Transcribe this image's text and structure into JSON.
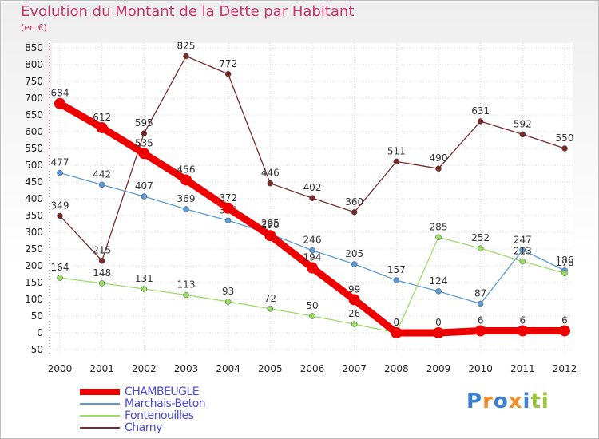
{
  "header": {
    "title": "Evolution du Montant de la Dette par Habitant",
    "unit": "(en €)"
  },
  "brand": {
    "text": "Proxiti"
  },
  "chart_data": {
    "type": "line",
    "title": "Evolution du Montant de la Dette par Habitant",
    "subtitle": "(en €)",
    "x": [
      "2000",
      "2001",
      "2002",
      "2003",
      "2004",
      "2005",
      "2006",
      "2007",
      "2008",
      "2009",
      "2010",
      "2011",
      "2012"
    ],
    "ylim": [
      -50,
      850
    ],
    "yticks": [
      -50,
      0,
      50,
      100,
      150,
      200,
      250,
      300,
      350,
      400,
      450,
      500,
      550,
      600,
      650,
      700,
      750,
      800,
      850
    ],
    "grid": true,
    "legend_position": "bottom-left",
    "series": [
      {
        "name": "CHAMBEUGLE",
        "color": "#ee0000",
        "emphasis": true,
        "values": [
          684,
          612,
          535,
          456,
          372,
          290,
          194,
          99,
          0,
          0,
          6,
          6,
          6
        ]
      },
      {
        "name": "Marchais-Beton",
        "color": "#5b9bd5",
        "values": [
          477,
          442,
          407,
          369,
          335,
          295,
          246,
          205,
          157,
          124,
          87,
          247,
          186
        ]
      },
      {
        "name": "Fontenouilles",
        "color": "#99dd66",
        "values": [
          164,
          148,
          131,
          113,
          93,
          72,
          50,
          26,
          0,
          285,
          252,
          213,
          178
        ]
      },
      {
        "name": "Charny",
        "color": "#7a2a2a",
        "values": [
          349,
          215,
          595,
          825,
          772,
          446,
          402,
          360,
          511,
          490,
          631,
          592,
          550
        ]
      }
    ]
  }
}
